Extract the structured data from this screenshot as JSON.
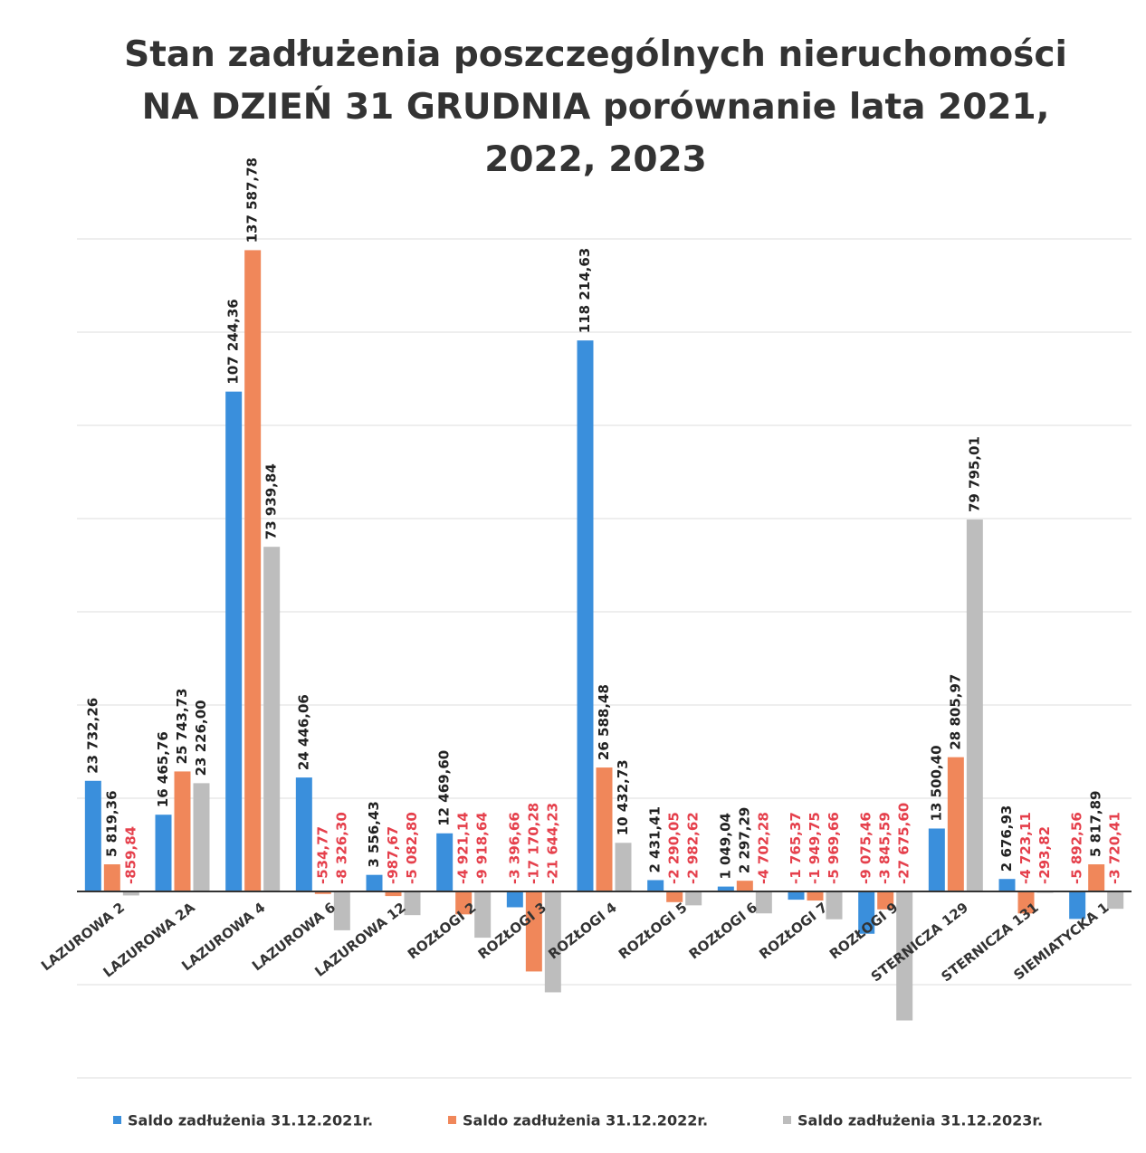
{
  "chart_data": {
    "type": "bar",
    "title": "Stan zadłużenia poszczególnych nieruchomości NA DZIEŃ 31 GRUDNIA porównanie lata 2021, 2022, 2023",
    "categories": [
      "LAZUROWA 2",
      "LAZUROWA 2A",
      "LAZUROWA 4",
      "LAZUROWA 6",
      "LAZUROWA 12",
      "ROZŁOGI 2",
      "ROZŁOGI 3",
      "ROZŁOGI 4",
      "ROZŁOGI 5",
      "ROZŁOGI 6",
      "ROZŁOGI 7",
      "ROZŁOGI 9",
      "STERNICZA 129",
      "STERNICZA 131",
      "SIEMIATYCKA 1"
    ],
    "series": [
      {
        "name": "Saldo zadłużenia 31.12.2021r.",
        "color": "#3a8fdc",
        "values": [
          23732.26,
          16465.76,
          107244.36,
          24446.06,
          3556.43,
          12469.6,
          -3396.66,
          118214.63,
          2431.41,
          1049.04,
          -1765.37,
          -9075.46,
          13500.4,
          2676.93,
          -5892.56
        ],
        "value_labels": [
          "23 732,26",
          "16 465,76",
          "107 244,36",
          "24 446,06",
          "3 556,43",
          "12 469,60",
          "-3 396,66",
          "118 214,63",
          "2 431,41",
          "1 049,04",
          "-1 765,37",
          "-9 075,46",
          "13 500,40",
          "2 676,93",
          "-5 892,56"
        ]
      },
      {
        "name": "Saldo zadłużenia 31.12.2022r.",
        "color": "#f0875a",
        "values": [
          5819.36,
          25743.73,
          137587.78,
          -534.77,
          -987.67,
          -4921.14,
          -17170.28,
          26588.48,
          -2290.05,
          2297.29,
          -1949.75,
          -3845.59,
          28805.97,
          -4723.11,
          5817.89
        ],
        "value_labels": [
          "5 819,36",
          "25 743,73",
          "137 587,78",
          "-534,77",
          "-987,67",
          "-4 921,14",
          "-17 170,28",
          "26 588,48",
          "-2 290,05",
          "2 297,29",
          "-1 949,75",
          "-3 845,59",
          "28 805,97",
          "-4 723,11",
          "5 817,89"
        ]
      },
      {
        "name": "Saldo zadłużenia 31.12.2023r.",
        "color": "#bdbdbd",
        "values": [
          -859.84,
          23226.0,
          73939.84,
          -8326.3,
          -5082.8,
          -9918.64,
          -21644.23,
          10432.73,
          -2982.62,
          -4702.28,
          -5969.66,
          -27675.6,
          79795.01,
          -293.82,
          -3720.41
        ],
        "value_labels": [
          "-859,84",
          "23 226,00",
          "73 939,84",
          "-8 326,30",
          "-5 082,80",
          "-9 918,64",
          "-21 644,23",
          "10 432,73",
          "-2 982,62",
          "-4 702,28",
          "-5 969,66",
          "-27 675,60",
          "79 795,01",
          "-293,82",
          "-3 720,41"
        ]
      }
    ],
    "ylim": [
      -40000,
      140000
    ],
    "yticks": [
      -40000,
      -20000,
      0,
      20000,
      40000,
      60000,
      80000,
      100000,
      120000,
      140000
    ],
    "grid": true,
    "label_color": "#222222",
    "negative_label_color": "#e5404c",
    "legend": "bottom"
  }
}
